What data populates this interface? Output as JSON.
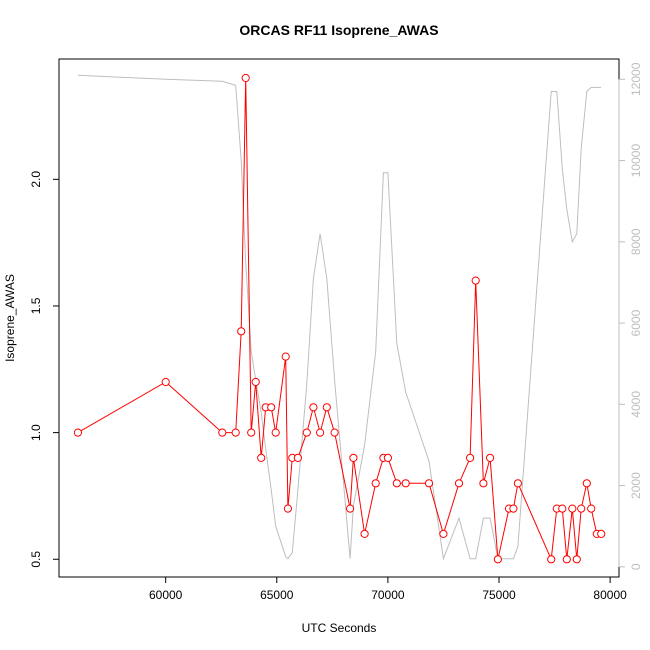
{
  "chart_data": {
    "type": "line",
    "title": "ORCAS RF11 Isoprene_AWAS",
    "xlabel": "UTC Seconds",
    "ylabel": "Isoprene_AWAS",
    "xlim": [
      55200,
      80400
    ],
    "ylim": [
      0.43,
      2.475
    ],
    "y2lim": [
      -250,
      12500
    ],
    "x_ticks": [
      60000,
      65000,
      70000,
      75000,
      80000
    ],
    "y_ticks": [
      0.5,
      1.0,
      1.5,
      2.0
    ],
    "y2_ticks": [
      0,
      2000,
      4000,
      6000,
      8000,
      10000,
      12000
    ],
    "grid": false,
    "colors": {
      "primary": "#ff0000",
      "secondary": "#bebebe",
      "axis": "#000000"
    },
    "series": [
      {
        "style": "line+open-circles",
        "axis": "left",
        "color": "#ff0000",
        "x": [
          56050,
          60000,
          62550,
          63150,
          63400,
          63600,
          63850,
          64050,
          64300,
          64500,
          64750,
          64950,
          65400,
          65500,
          65700,
          65950,
          66350,
          66650,
          66950,
          67250,
          67600,
          68300,
          68450,
          68950,
          69450,
          69800,
          70000,
          70400,
          70800,
          71850,
          72500,
          73200,
          73700,
          73950,
          74300,
          74600,
          74950,
          75450,
          75650,
          75850,
          77350,
          77600,
          77850,
          78050,
          78300,
          78500,
          78700,
          78950,
          79150,
          79400,
          79600
        ],
        "y": [
          1.0,
          1.2,
          1.0,
          1.0,
          1.4,
          2.4,
          1.0,
          1.2,
          0.9,
          1.1,
          1.1,
          1.0,
          1.3,
          0.7,
          0.9,
          0.9,
          1.0,
          1.1,
          1.0,
          1.1,
          1.0,
          0.7,
          0.9,
          0.6,
          0.8,
          0.9,
          0.9,
          0.8,
          0.8,
          0.8,
          0.6,
          0.8,
          0.9,
          1.6,
          0.8,
          0.9,
          0.5,
          0.7,
          0.7,
          0.8,
          0.5,
          0.7,
          0.7,
          0.5,
          0.7,
          0.5,
          0.7,
          0.8,
          0.7,
          0.6,
          0.6
        ]
      },
      {
        "style": "line",
        "axis": "right",
        "color": "#bebebe",
        "x": [
          56050,
          60000,
          62550,
          63150,
          63400,
          63600,
          63850,
          64050,
          64300,
          64500,
          64750,
          64950,
          65400,
          65500,
          65700,
          65950,
          66350,
          66650,
          66950,
          67250,
          67600,
          68300,
          68450,
          68950,
          69450,
          69800,
          70000,
          70400,
          70800,
          71850,
          72500,
          73200,
          73700,
          73950,
          74300,
          74600,
          74950,
          75450,
          75650,
          75850,
          77350,
          77600,
          77850,
          78050,
          78300,
          78500,
          78700,
          78950,
          79150,
          79400,
          79600
        ],
        "y": [
          12100,
          12000,
          11950,
          11850,
          10000,
          7500,
          5300,
          4600,
          3800,
          2900,
          1900,
          1000,
          250,
          200,
          350,
          1900,
          4500,
          7100,
          8200,
          7100,
          4600,
          200,
          1500,
          3000,
          5300,
          9700,
          9700,
          5500,
          4300,
          2600,
          200,
          1200,
          200,
          200,
          1200,
          1200,
          200,
          200,
          200,
          500,
          11700,
          11700,
          9800,
          8800,
          8000,
          8200,
          10300,
          11700,
          11800,
          11800,
          11800
        ]
      }
    ]
  }
}
